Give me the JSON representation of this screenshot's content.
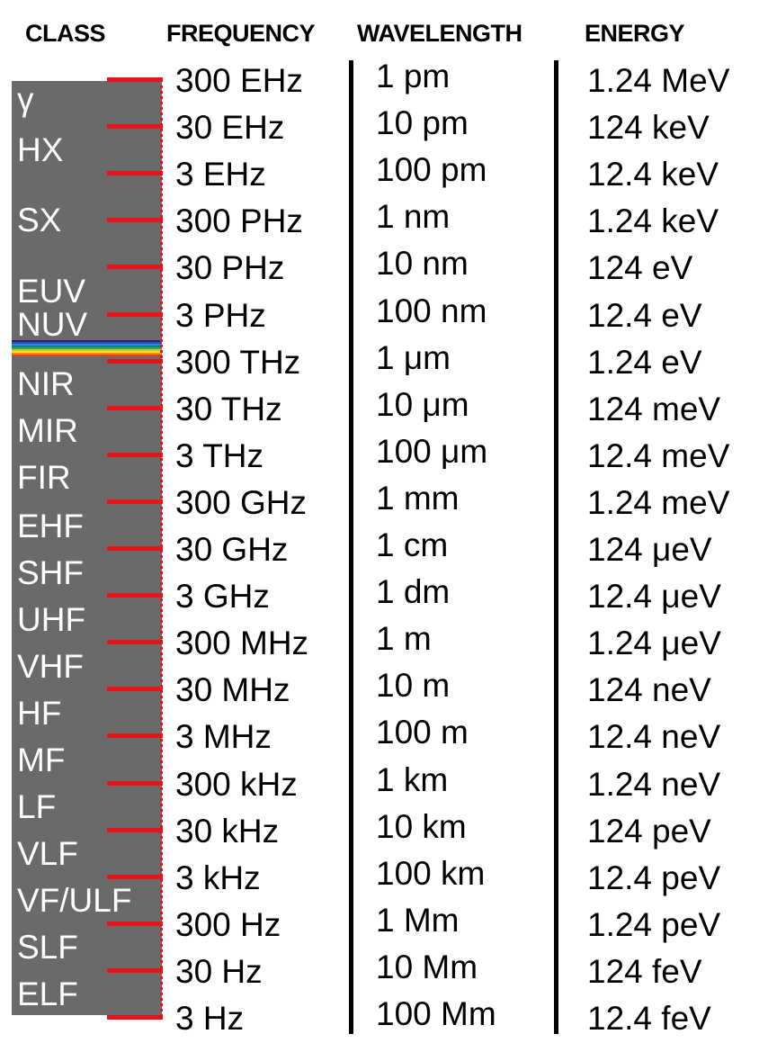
{
  "headers": {
    "class": "CLASS",
    "frequency": "FREQUENCY",
    "wavelength": "WAVELENGTH",
    "energy": "ENERGY"
  },
  "classes": [
    "γ",
    "HX",
    "SX",
    "EUV",
    "NUV",
    "NIR",
    "MIR",
    "FIR",
    "EHF",
    "SHF",
    "UHF",
    "VHF",
    "HF",
    "MF",
    "LF",
    "VLF",
    "VF/ULF",
    "SLF",
    "ELF"
  ],
  "rows": [
    {
      "frequency": "300 EHz",
      "wavelength": "1 pm",
      "energy": "1.24 MeV"
    },
    {
      "frequency": "30 EHz",
      "wavelength": "10 pm",
      "energy": "124 keV"
    },
    {
      "frequency": "3 EHz",
      "wavelength": "100 pm",
      "energy": "12.4 keV"
    },
    {
      "frequency": "300 PHz",
      "wavelength": "1 nm",
      "energy": "1.24 keV"
    },
    {
      "frequency": "30 PHz",
      "wavelength": "10 nm",
      "energy": "124 eV"
    },
    {
      "frequency": "3 PHz",
      "wavelength": "100 nm",
      "energy": "12.4 eV"
    },
    {
      "frequency": "300 THz",
      "wavelength": "1 μm",
      "energy": "1.24 eV"
    },
    {
      "frequency": "30 THz",
      "wavelength": "10 μm",
      "energy": "124 meV"
    },
    {
      "frequency": "3 THz",
      "wavelength": "100 μm",
      "energy": "12.4 meV"
    },
    {
      "frequency": "300 GHz",
      "wavelength": "1 mm",
      "energy": "1.24 meV"
    },
    {
      "frequency": "30 GHz",
      "wavelength": "1 cm",
      "energy": "124 μeV"
    },
    {
      "frequency": "3 GHz",
      "wavelength": "1 dm",
      "energy": "12.4 μeV"
    },
    {
      "frequency": "300 MHz",
      "wavelength": "1 m",
      "energy": "1.24 μeV"
    },
    {
      "frequency": "30 MHz",
      "wavelength": "10 m",
      "energy": "124 neV"
    },
    {
      "frequency": "3 MHz",
      "wavelength": "100 m",
      "energy": "12.4 neV"
    },
    {
      "frequency": "300 kHz",
      "wavelength": "1 km",
      "energy": "1.24 neV"
    },
    {
      "frequency": "30 kHz",
      "wavelength": "10 km",
      "energy": "124 peV"
    },
    {
      "frequency": "3 kHz",
      "wavelength": "100 km",
      "energy": "12.4 peV"
    },
    {
      "frequency": "300 Hz",
      "wavelength": "1 Mm",
      "energy": "1.24 peV"
    },
    {
      "frequency": "30 Hz",
      "wavelength": "10 Mm",
      "energy": "124 feV"
    },
    {
      "frequency": "3 Hz",
      "wavelength": "100 Mm",
      "energy": "12.4 feV"
    }
  ],
  "colors": {
    "band": "#6a6a6a",
    "tick": "#e8141a",
    "visible_spectrum": [
      "#1a237e",
      "#3949ab",
      "#1e88e5",
      "#00897b",
      "#43a047",
      "#c0ca33",
      "#fdd835",
      "#fb8c00",
      "#e53935"
    ]
  }
}
